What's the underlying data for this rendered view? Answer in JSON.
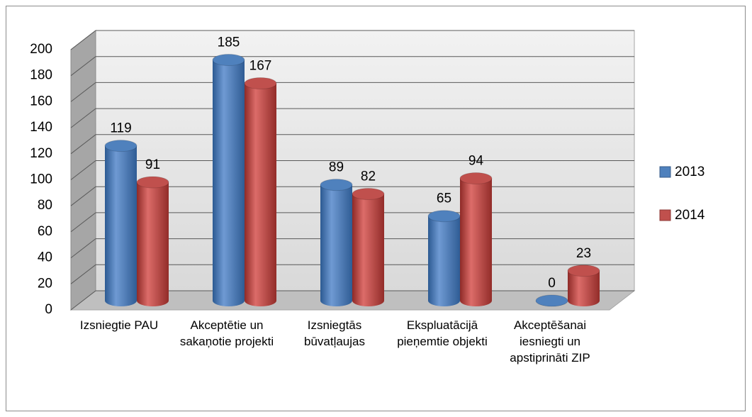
{
  "chart_data": {
    "type": "bar",
    "style": "3d-cylinder",
    "categories": [
      "Izsniegtie PAU",
      "Akceptētie un sakaņotie projekti",
      "Izsniegtās būvatļaujas",
      "Ekspluatācijā pieņemtie objekti",
      "Akceptēšanai iesniegti un apstiprināti ZIP"
    ],
    "series": [
      {
        "name": "2013",
        "color": "#4f81bd",
        "values": [
          119,
          185,
          89,
          65,
          0
        ]
      },
      {
        "name": "2014",
        "color": "#c0504d",
        "values": [
          91,
          167,
          82,
          94,
          23
        ]
      }
    ],
    "ylim": [
      0,
      200
    ],
    "yticks": [
      0,
      20,
      40,
      60,
      80,
      100,
      120,
      140,
      160,
      180,
      200
    ],
    "grid": true,
    "legend": "right"
  }
}
